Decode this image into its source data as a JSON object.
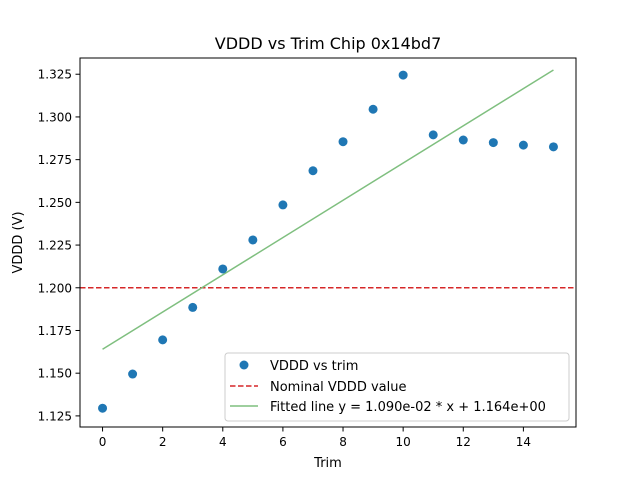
{
  "chart_data": {
    "type": "scatter",
    "title": "VDDD vs Trim Chip 0x14bd7",
    "xlabel": "Trim",
    "ylabel": "VDDD (V)",
    "xlim": [
      -0.75,
      15.75
    ],
    "ylim": [
      1.1185,
      1.3345
    ],
    "xticks": [
      0,
      2,
      4,
      6,
      8,
      10,
      12,
      14
    ],
    "xtick_labels": [
      "0",
      "2",
      "4",
      "6",
      "8",
      "10",
      "12",
      "14"
    ],
    "yticks": [
      1.125,
      1.15,
      1.175,
      1.2,
      1.225,
      1.25,
      1.275,
      1.3,
      1.325
    ],
    "ytick_labels": [
      "1.125",
      "1.150",
      "1.175",
      "1.200",
      "1.225",
      "1.250",
      "1.275",
      "1.300",
      "1.325"
    ],
    "grid": false,
    "legend_position": "lower-right",
    "series": [
      {
        "name": "VDDD vs trim",
        "kind": "scatter",
        "color": "#1f77b4",
        "x": [
          0,
          1,
          2,
          3,
          4,
          5,
          6,
          7,
          8,
          9,
          10,
          11,
          12,
          13,
          14,
          15
        ],
        "y": [
          1.1295,
          1.1495,
          1.1695,
          1.1885,
          1.211,
          1.228,
          1.2485,
          1.2685,
          1.2855,
          1.3045,
          1.3245,
          1.2895,
          1.2865,
          1.285,
          1.2835,
          1.2825
        ]
      }
    ],
    "nominal_line": {
      "name": "Nominal VDDD value",
      "value": 1.2,
      "color": "#d62728",
      "style": "dashed"
    },
    "fit_line": {
      "name": "Fitted line y = 1.090e-02 * x + 1.164e+00",
      "slope": 0.0109,
      "intercept": 1.164,
      "x_range": [
        0,
        15
      ],
      "color": "#7fbf7f"
    }
  }
}
